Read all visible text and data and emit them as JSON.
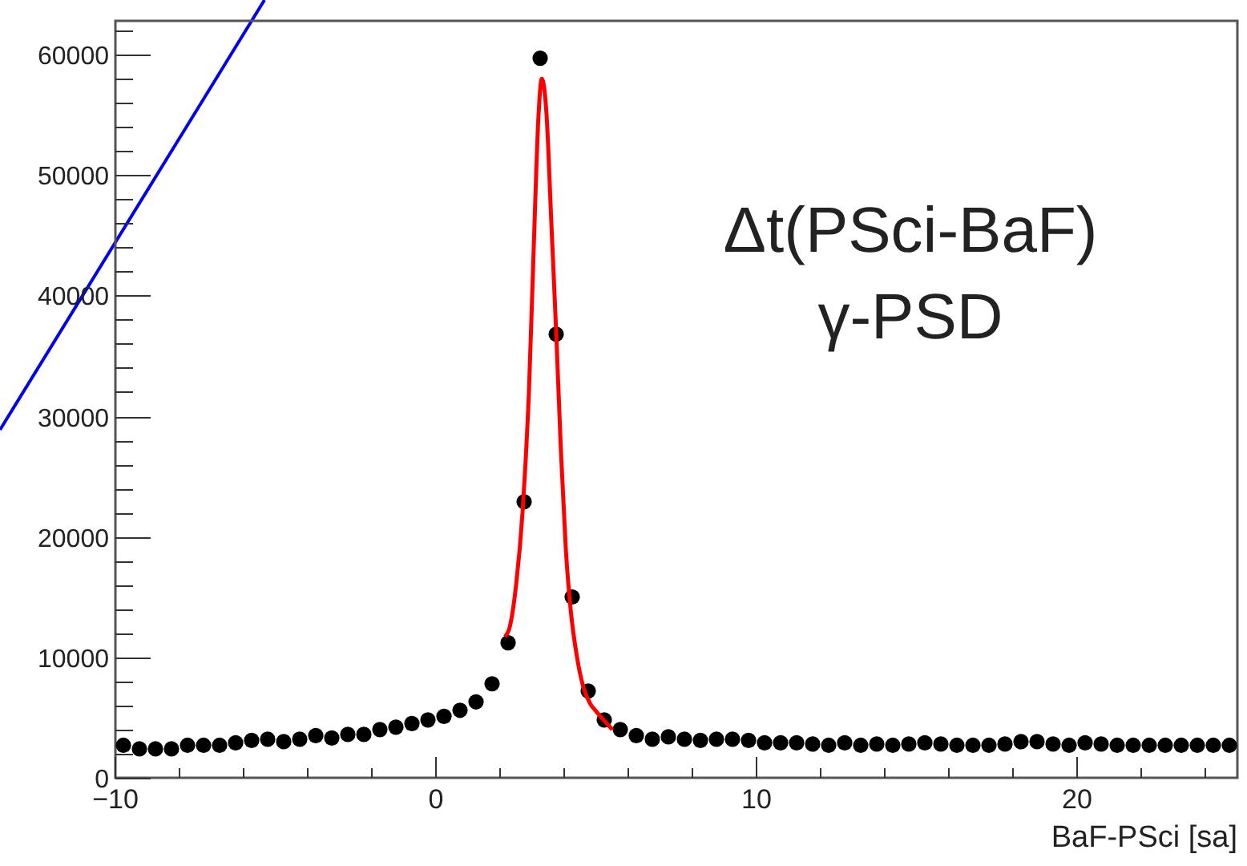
{
  "chart_data": {
    "type": "scatter",
    "xlabel": "BaF-PSci [sa]",
    "xlim": [
      -10,
      25
    ],
    "xticks": [
      -10,
      0,
      10,
      20
    ],
    "ylim": [
      0,
      62800
    ],
    "yticks": [
      0,
      10000,
      20000,
      30000,
      40000,
      50000,
      60000
    ],
    "grid": false,
    "marker": "circle",
    "annotations": [
      "Δt(PSci-BaF)",
      "γ-PSD"
    ],
    "series": [
      {
        "color": "#000000",
        "x": [
          -9.75,
          -9.25,
          -8.75,
          -8.25,
          -7.75,
          -7.25,
          -6.75,
          -6.25,
          -5.75,
          -5.25,
          -4.75,
          -4.25,
          -3.75,
          -3.25,
          -2.75,
          -2.25,
          -1.75,
          -1.25,
          -0.75,
          -0.25,
          0.25,
          0.75,
          1.25,
          1.75,
          2.25,
          2.75,
          3.25,
          3.75,
          4.25,
          4.75,
          5.25,
          5.75,
          6.25,
          6.75,
          7.25,
          7.75,
          8.25,
          8.75,
          9.25,
          9.75,
          10.25,
          10.75,
          11.25,
          11.75,
          12.25,
          12.75,
          13.25,
          13.75,
          14.25,
          14.75,
          15.25,
          15.75,
          16.25,
          16.75,
          17.25,
          17.75,
          18.25,
          18.75,
          19.25,
          19.75,
          20.25,
          20.75,
          21.25,
          21.75,
          22.25,
          22.75,
          23.25,
          23.75,
          24.25,
          24.75
        ],
        "values": [
          2700,
          2400,
          2400,
          2400,
          2700,
          2700,
          2700,
          2900,
          3100,
          3200,
          3000,
          3200,
          3500,
          3300,
          3600,
          3600,
          4000,
          4200,
          4500,
          4800,
          5100,
          5600,
          6300,
          7800,
          11200,
          22900,
          59700,
          36800,
          15000,
          7200,
          4800,
          4000,
          3500,
          3200,
          3400,
          3200,
          3100,
          3200,
          3200,
          3100,
          2900,
          2900,
          2900,
          2800,
          2700,
          2900,
          2700,
          2800,
          2700,
          2800,
          2900,
          2800,
          2700,
          2700,
          2700,
          2800,
          3000,
          3000,
          2800,
          2700,
          2900,
          2800,
          2700,
          2700,
          2700,
          2700,
          2700,
          2700,
          2700,
          2700
        ]
      },
      {
        "type": "line",
        "color": "#ff0000",
        "marker": "none",
        "x": [
          2.15,
          2.3,
          2.5,
          2.7,
          2.9,
          3.05,
          3.2,
          3.3,
          3.45,
          3.6,
          3.75,
          3.9,
          4.05,
          4.2,
          4.4,
          4.6,
          4.8,
          5.0,
          5.3,
          5.5
        ],
        "values": [
          11700,
          12500,
          16000,
          22000,
          32000,
          44000,
          55000,
          58000,
          55000,
          46000,
          37000,
          27000,
          19000,
          14000,
          10000,
          7500,
          6200,
          5500,
          4600,
          4000
        ]
      }
    ]
  }
}
